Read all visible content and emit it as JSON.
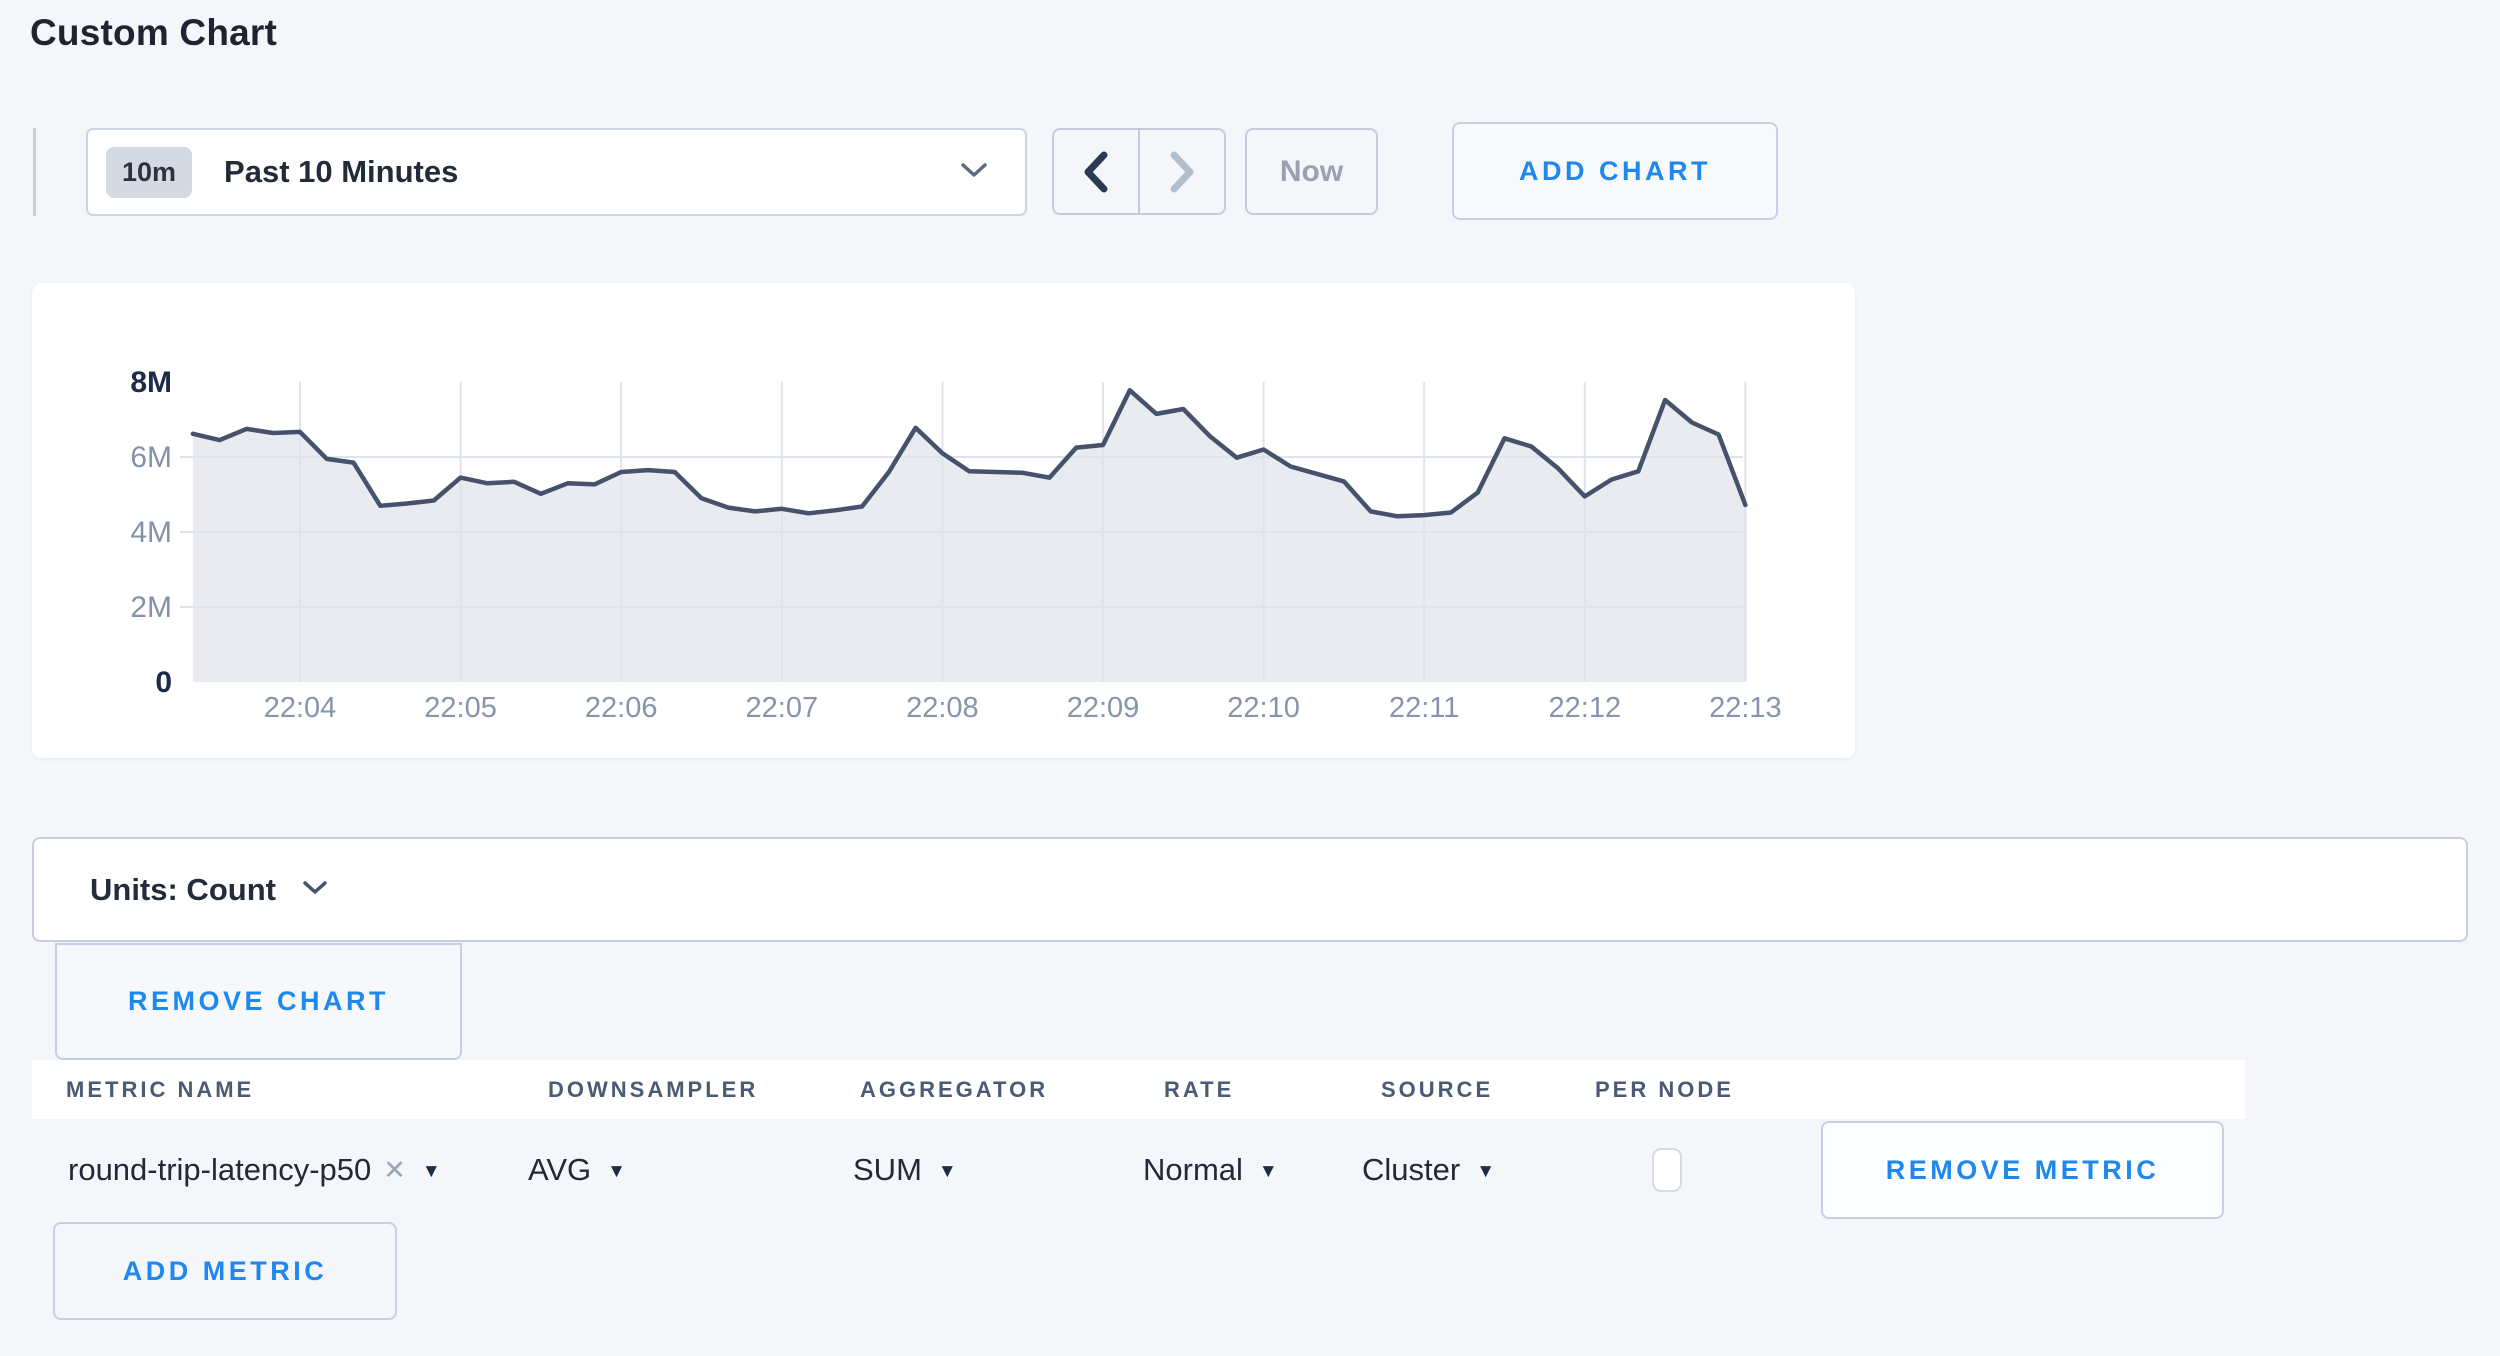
{
  "page_title": "Custom Chart",
  "accent_color": "#1e88ee",
  "toolbar": {
    "range_badge": "10m",
    "range_label": "Past 10 Minutes",
    "now_label": "Now",
    "add_chart_label": "ADD CHART",
    "prev_icon": "chevron-left",
    "next_icon": "chevron-right",
    "next_disabled": true
  },
  "chart_data": {
    "type": "area",
    "title": "",
    "xlabel": "",
    "ylabel": "",
    "unit": "M",
    "ylim": [
      0,
      8000000
    ],
    "grid": true,
    "line_color": "#46526b",
    "area_fill": "#e9ebf1",
    "grid_color": "#dfe3ec",
    "x_ticks": [
      "22:04",
      "22:05",
      "22:06",
      "22:07",
      "22:08",
      "22:09",
      "22:10",
      "22:11",
      "22:12",
      "22:13"
    ],
    "y_ticks": [
      {
        "v": 0,
        "label": "0",
        "strong": true
      },
      {
        "v": 2,
        "label": "2M",
        "strong": false
      },
      {
        "v": 4,
        "label": "4M",
        "strong": false
      },
      {
        "v": 6,
        "label": "6M",
        "strong": false
      },
      {
        "v": 8,
        "label": "8M",
        "strong": true
      }
    ],
    "points": [
      [
        "22:03:20",
        6.62
      ],
      [
        "22:03:30",
        6.45
      ],
      [
        "22:03:40",
        6.75
      ],
      [
        "22:03:50",
        6.64
      ],
      [
        "22:04:00",
        6.67
      ],
      [
        "22:04:10",
        5.95
      ],
      [
        "22:04:20",
        5.85
      ],
      [
        "22:04:30",
        4.7
      ],
      [
        "22:04:40",
        4.76
      ],
      [
        "22:04:50",
        4.84
      ],
      [
        "22:05:00",
        5.45
      ],
      [
        "22:05:10",
        5.3
      ],
      [
        "22:05:20",
        5.34
      ],
      [
        "22:05:30",
        5.02
      ],
      [
        "22:05:40",
        5.3
      ],
      [
        "22:05:50",
        5.27
      ],
      [
        "22:06:00",
        5.6
      ],
      [
        "22:06:10",
        5.65
      ],
      [
        "22:06:20",
        5.6
      ],
      [
        "22:06:30",
        4.9
      ],
      [
        "22:06:40",
        4.65
      ],
      [
        "22:06:50",
        4.55
      ],
      [
        "22:07:00",
        4.62
      ],
      [
        "22:07:10",
        4.5
      ],
      [
        "22:07:20",
        4.58
      ],
      [
        "22:07:30",
        4.68
      ],
      [
        "22:07:40",
        5.6
      ],
      [
        "22:07:50",
        6.78
      ],
      [
        "22:08:00",
        6.1
      ],
      [
        "22:08:10",
        5.62
      ],
      [
        "22:08:20",
        5.6
      ],
      [
        "22:08:30",
        5.58
      ],
      [
        "22:08:40",
        5.45
      ],
      [
        "22:08:50",
        6.25
      ],
      [
        "22:09:00",
        6.32
      ],
      [
        "22:09:10",
        7.78
      ],
      [
        "22:09:20",
        7.15
      ],
      [
        "22:09:30",
        7.28
      ],
      [
        "22:09:40",
        6.55
      ],
      [
        "22:09:50",
        5.98
      ],
      [
        "22:10:00",
        6.2
      ],
      [
        "22:10:10",
        5.75
      ],
      [
        "22:10:20",
        5.55
      ],
      [
        "22:10:30",
        5.35
      ],
      [
        "22:10:40",
        4.55
      ],
      [
        "22:10:50",
        4.42
      ],
      [
        "22:11:00",
        4.45
      ],
      [
        "22:11:10",
        4.52
      ],
      [
        "22:11:20",
        5.05
      ],
      [
        "22:11:30",
        6.5
      ],
      [
        "22:11:40",
        6.28
      ],
      [
        "22:11:50",
        5.7
      ],
      [
        "22:12:00",
        4.95
      ],
      [
        "22:12:10",
        5.4
      ],
      [
        "22:12:20",
        5.62
      ],
      [
        "22:12:30",
        7.52
      ],
      [
        "22:12:40",
        6.92
      ],
      [
        "22:12:50",
        6.6
      ],
      [
        "22:13:00",
        4.72
      ]
    ]
  },
  "units_bar": {
    "label": "Units: Count"
  },
  "remove_chart_label": "REMOVE CHART",
  "metrics_table": {
    "headers": [
      "METRIC NAME",
      "DOWNSAMPLER",
      "AGGREGATOR",
      "RATE",
      "SOURCE",
      "PER NODE"
    ],
    "rows": [
      {
        "metric_name": "round-trip-latency-p50",
        "remove_tag_icon": "✕",
        "downsampler": "AVG",
        "aggregator": "SUM",
        "rate": "Normal",
        "source": "Cluster",
        "per_node_checked": false,
        "remove_label": "REMOVE METRIC"
      }
    ],
    "add_metric_label": "ADD METRIC"
  }
}
